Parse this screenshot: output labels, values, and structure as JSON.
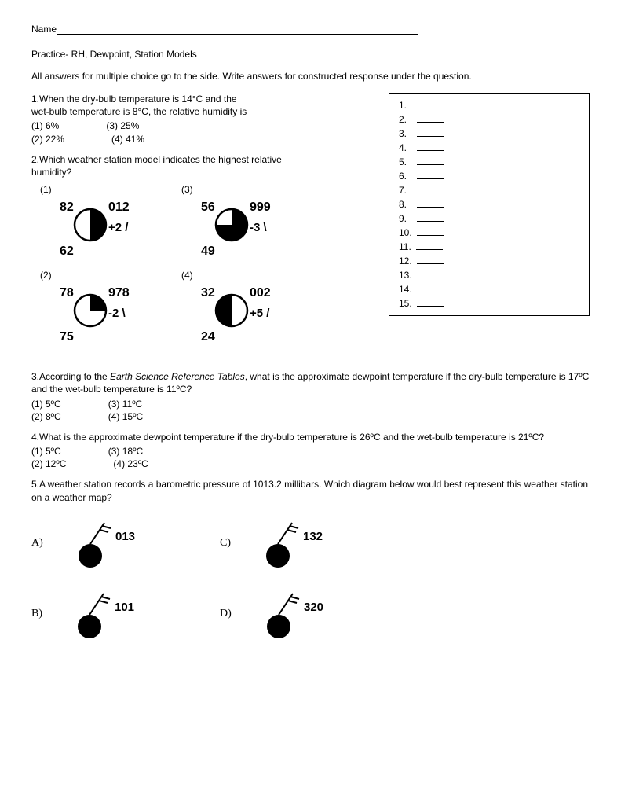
{
  "header": {
    "name_label": "Name",
    "title": "Practice- RH, Dewpoint, Station Models",
    "instructions": "All answers for multiple choice go to the side. Write answers for constructed response under the question."
  },
  "answer_box": {
    "count": 15
  },
  "q1": {
    "text1": "1.When the dry-bulb temperature is 14°C and the",
    "text2": "wet-bulb temperature is 8°C, the relative humidity is",
    "c1": "(1) 6%",
    "c3": "(3) 25%",
    "c2": "(2) 22%",
    "c4": "(4) 41%"
  },
  "q2": {
    "text1": "2.Which weather station model indicates the highest relative",
    "text2": "humidity?",
    "models": [
      {
        "label": "(1)",
        "temp": "82",
        "pres": "012",
        "tend": "+2 /",
        "dew": "62",
        "fill": "right-half"
      },
      {
        "label": "(3)",
        "temp": "56",
        "pres": "999",
        "tend": "-3 \\",
        "dew": "49",
        "fill": "three-quarter"
      },
      {
        "label": "(2)",
        "temp": "78",
        "pres": "978",
        "tend": "-2 \\",
        "dew": "75",
        "fill": "quarter"
      },
      {
        "label": "(4)",
        "temp": "32",
        "pres": "002",
        "tend": "+5 /",
        "dew": "24",
        "fill": "left-half"
      }
    ]
  },
  "q3": {
    "text1a": "3.According to the ",
    "text1b": "Earth Science Reference Tables",
    "text1c": ", what is the  approximate dewpoint temperature if the dry-bulb temperature is 17ºC",
    "text2": "and the wet-bulb temperature is 11ºC?",
    "c1": "(1) 5ºC",
    "c3": "(3) 11ºC",
    "c2": "(2) 8ºC",
    "c4": "(4) 15ºC"
  },
  "q4": {
    "text": "4.What is the approximate dewpoint temperature if the dry-bulb temperature is 26ºC and the wet-bulb temperature is 21ºC?",
    "c1": "(1) 5ºC",
    "c3": "(3) 18ºC",
    "c2": "(2) 12ºC",
    "c4": "(4) 23ºC"
  },
  "q5": {
    "text1": "5.A weather station records a barometric pressure of 1013.2 millibars. Which diagram below would best represent this weather station",
    "text2": "on a weather map?",
    "options": [
      {
        "label": "A)",
        "value": "013"
      },
      {
        "label": "C)",
        "value": "132"
      },
      {
        "label": "B)",
        "value": "101"
      },
      {
        "label": "D)",
        "value": "320"
      }
    ]
  }
}
